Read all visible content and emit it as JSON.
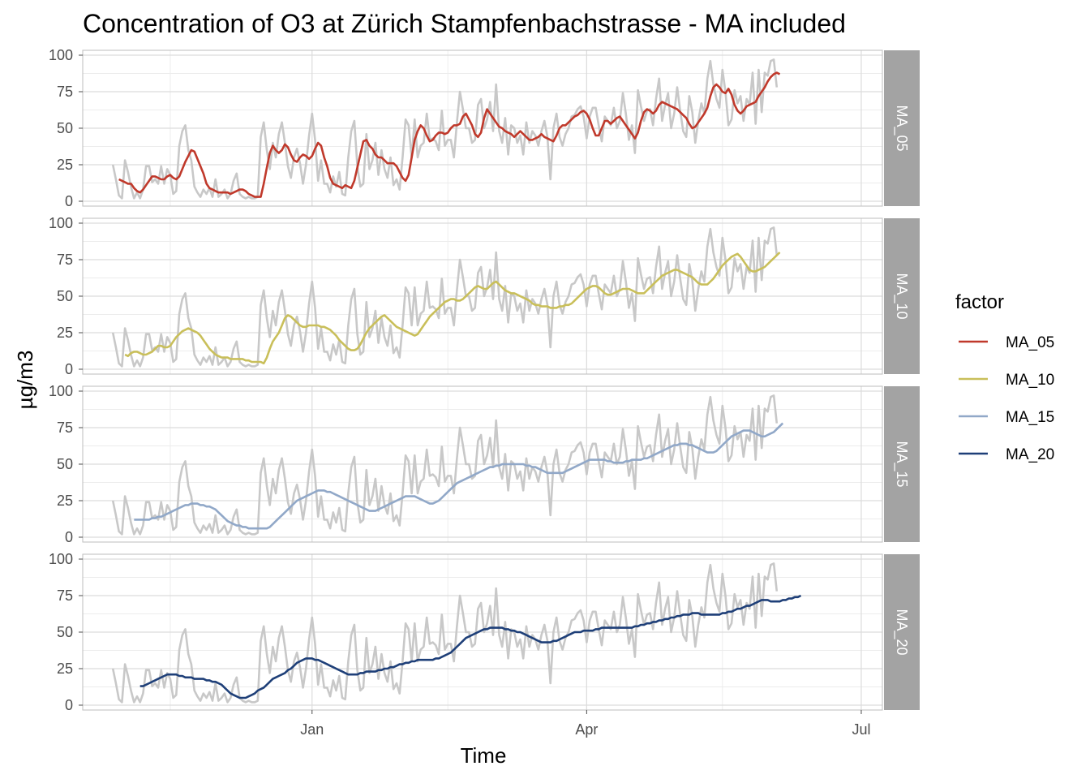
{
  "chart_data": {
    "type": "line",
    "title": "Concentration of O3 at Zürich Stampfenbachstrasse - MA included",
    "xlabel": "Time",
    "ylabel": "µg/m3",
    "x_ticks": [
      "Jan",
      "Apr",
      "Jul"
    ],
    "x_range": [
      "2019-10-17",
      "2020-07-08"
    ],
    "y_ticks": [
      0,
      25,
      50,
      75,
      100
    ],
    "ylim": [
      0,
      100
    ],
    "grid": true,
    "legend": {
      "title": "factor",
      "position": "right"
    },
    "raw_series_color": "#c8c8c8",
    "start_date": "2019-10-27",
    "raw_values": [
      25,
      15,
      4,
      2,
      28,
      20,
      10,
      2,
      6,
      2,
      8,
      24,
      24,
      13,
      15,
      12,
      24,
      12,
      22,
      18,
      5,
      7,
      38,
      48,
      52,
      35,
      28,
      10,
      6,
      3,
      8,
      5,
      9,
      3,
      15,
      3,
      5,
      8,
      2,
      5,
      14,
      19,
      5,
      3,
      2,
      3,
      2,
      2,
      3,
      44,
      54,
      35,
      22,
      40,
      30,
      46,
      54,
      40,
      24,
      16,
      30,
      36,
      26,
      12,
      25,
      45,
      60,
      42,
      14,
      28,
      12,
      12,
      6,
      17,
      10,
      20,
      5,
      4,
      30,
      48,
      55,
      24,
      10,
      12,
      46,
      22,
      28,
      40,
      18,
      35,
      22,
      16,
      30,
      11,
      15,
      8,
      30,
      56,
      52,
      30,
      56,
      30,
      38,
      40,
      60,
      42,
      43,
      41,
      35,
      62,
      38,
      42,
      42,
      30,
      54,
      75,
      63,
      50,
      50,
      40,
      42,
      66,
      70,
      50,
      56,
      68,
      48,
      80,
      48,
      40,
      57,
      32,
      52,
      50,
      40,
      45,
      32,
      54,
      40,
      48,
      45,
      38,
      48,
      55,
      44,
      15,
      50,
      60,
      44,
      38,
      46,
      50,
      58,
      59,
      63,
      65,
      58,
      43,
      58,
      64,
      64,
      52,
      41,
      58,
      55,
      52,
      64,
      50,
      55,
      74,
      60,
      42,
      52,
      33,
      76,
      65,
      55,
      62,
      63,
      52,
      70,
      84,
      55,
      66,
      74,
      50,
      60,
      78,
      62,
      48,
      44,
      72,
      61,
      40,
      55,
      67,
      60,
      84,
      96,
      80,
      70,
      64,
      90,
      75,
      52,
      56,
      76,
      67,
      72,
      55,
      70,
      66,
      88,
      53,
      90,
      61,
      88,
      86,
      96,
      97,
      78
    ],
    "series": [
      {
        "name": "MA_05",
        "color": "#c0392b",
        "offset": 2,
        "values": [
          15,
          14,
          13,
          12,
          12,
          9,
          7,
          6,
          8,
          11,
          14,
          17,
          17,
          16,
          15,
          15,
          17,
          18,
          16,
          15,
          17,
          22,
          27,
          31,
          35,
          34,
          29,
          24,
          19,
          12,
          9,
          8,
          7,
          6,
          6,
          6,
          6,
          5,
          6,
          7,
          8,
          8,
          7,
          5,
          4,
          3,
          3,
          3,
          12,
          23,
          33,
          38,
          35,
          33,
          35,
          39,
          37,
          32,
          28,
          27,
          30,
          32,
          31,
          29,
          31,
          36,
          40,
          38,
          30,
          24,
          16,
          12,
          11,
          10,
          9,
          11,
          10,
          9,
          14,
          23,
          32,
          41,
          42,
          38,
          36,
          32,
          30,
          30,
          28,
          26,
          26,
          26,
          24,
          20,
          16,
          14,
          18,
          30,
          42,
          48,
          52,
          50,
          45,
          41,
          42,
          45,
          47,
          47,
          46,
          47,
          50,
          52,
          52,
          53,
          58,
          60,
          56,
          52,
          46,
          44,
          47,
          57,
          63,
          60,
          57,
          54,
          51,
          50,
          48,
          47,
          46,
          44,
          46,
          48,
          46,
          44,
          42,
          42,
          43,
          44,
          46,
          44,
          43,
          42,
          41,
          45,
          50,
          52,
          52,
          54,
          56,
          58,
          59,
          61,
          62,
          60,
          56,
          50,
          45,
          45,
          50,
          55,
          55,
          53,
          55,
          57,
          58,
          55,
          52,
          49,
          46,
          43,
          47,
          55,
          61,
          63,
          62,
          60,
          62,
          66,
          68,
          67,
          66,
          65,
          64,
          63,
          61,
          59,
          57,
          53,
          50,
          51,
          54,
          57,
          60,
          64,
          72,
          78,
          80,
          78,
          75,
          74,
          77,
          73,
          66,
          62,
          60,
          62,
          65,
          66,
          67,
          68,
          72,
          75,
          78,
          82,
          85,
          87,
          88,
          87
        ]
      },
      {
        "name": "MA_10",
        "color": "#c9bf5a",
        "offset": 4,
        "values": [
          10,
          9,
          11,
          12,
          12,
          11,
          10,
          10,
          11,
          12,
          14,
          16,
          16,
          15,
          15,
          16,
          19,
          22,
          24,
          26,
          27,
          28,
          27,
          26,
          25,
          23,
          20,
          17,
          14,
          12,
          10,
          9,
          8,
          8,
          8,
          7,
          7,
          7,
          7,
          7,
          6,
          6,
          5,
          5,
          5,
          5,
          4,
          8,
          14,
          19,
          22,
          25,
          30,
          35,
          37,
          36,
          34,
          32,
          30,
          29,
          29,
          30,
          30,
          30,
          30,
          29,
          29,
          28,
          27,
          25,
          23,
          20,
          18,
          16,
          14,
          13,
          13,
          14,
          17,
          21,
          25,
          28,
          30,
          32,
          34,
          36,
          37,
          35,
          33,
          31,
          29,
          28,
          27,
          26,
          25,
          24,
          23,
          24,
          27,
          30,
          33,
          36,
          38,
          40,
          42,
          44,
          46,
          47,
          48,
          48,
          47,
          47,
          48,
          50,
          52,
          54,
          56,
          57,
          56,
          55,
          55,
          57,
          59,
          60,
          58,
          56,
          54,
          53,
          52,
          52,
          51,
          50,
          49,
          48,
          47,
          45,
          44,
          44,
          43,
          43,
          43,
          42,
          42,
          42,
          43,
          43,
          44,
          44,
          45,
          47,
          49,
          51,
          53,
          55,
          56,
          57,
          57,
          56,
          54,
          52,
          51,
          51,
          52,
          53,
          54,
          55,
          55,
          55,
          54,
          53,
          52,
          52,
          52,
          54,
          56,
          58,
          60,
          62,
          64,
          65,
          66,
          67,
          68,
          68,
          67,
          66,
          65,
          64,
          63,
          61,
          59,
          58,
          58,
          58,
          60,
          62,
          65,
          68,
          71,
          73,
          75,
          77,
          78,
          79,
          77,
          74,
          71,
          68,
          67,
          67,
          68,
          69,
          70,
          72,
          74,
          76,
          78,
          80
        ]
      },
      {
        "name": "MA_15",
        "color": "#91a8c8",
        "offset": 7,
        "values": [
          12,
          12,
          12,
          12,
          12,
          12,
          13,
          13,
          14,
          14,
          15,
          16,
          17,
          18,
          19,
          20,
          21,
          22,
          22,
          23,
          23,
          23,
          22,
          22,
          21,
          21,
          20,
          19,
          17,
          15,
          13,
          11,
          10,
          9,
          8,
          8,
          7,
          7,
          6,
          6,
          6,
          6,
          6,
          6,
          6,
          7,
          9,
          11,
          13,
          15,
          17,
          19,
          21,
          23,
          25,
          26,
          27,
          28,
          29,
          30,
          31,
          32,
          32,
          32,
          31,
          31,
          30,
          29,
          28,
          27,
          26,
          25,
          24,
          23,
          22,
          21,
          20,
          19,
          18,
          18,
          18,
          19,
          20,
          21,
          22,
          23,
          24,
          25,
          26,
          27,
          28,
          28,
          28,
          28,
          27,
          26,
          25,
          24,
          23,
          23,
          24,
          25,
          27,
          29,
          31,
          33,
          35,
          37,
          38,
          39,
          40,
          41,
          42,
          43,
          44,
          45,
          46,
          47,
          48,
          48,
          49,
          49,
          50,
          50,
          50,
          50,
          50,
          50,
          50,
          50,
          49,
          49,
          48,
          48,
          47,
          46,
          45,
          44,
          44,
          44,
          44,
          44,
          44,
          45,
          46,
          47,
          48,
          49,
          50,
          51,
          52,
          53,
          53,
          53,
          53,
          53,
          53,
          52,
          52,
          51,
          51,
          51,
          51,
          52,
          52,
          53,
          53,
          53,
          53,
          54,
          54,
          55,
          56,
          57,
          58,
          59,
          60,
          61,
          62,
          63,
          63,
          64,
          64,
          64,
          63,
          63,
          62,
          61,
          60,
          59,
          58,
          58,
          58,
          59,
          61,
          63,
          65,
          67,
          69,
          70,
          71,
          72,
          73,
          73,
          73,
          72,
          71,
          70,
          69,
          69,
          70,
          71,
          72,
          74,
          76,
          78
        ]
      },
      {
        "name": "MA_20",
        "color": "#1e3f78",
        "offset": 9,
        "values": [
          13,
          13,
          14,
          15,
          16,
          17,
          18,
          19,
          20,
          21,
          21,
          21,
          21,
          20,
          20,
          19,
          19,
          19,
          18,
          18,
          18,
          18,
          17,
          17,
          16,
          16,
          15,
          14,
          12,
          10,
          8,
          7,
          6,
          5,
          5,
          5,
          6,
          7,
          8,
          10,
          11,
          12,
          14,
          16,
          18,
          19,
          20,
          21,
          22,
          24,
          25,
          27,
          29,
          30,
          31,
          32,
          32,
          32,
          31,
          31,
          30,
          29,
          28,
          27,
          26,
          25,
          24,
          23,
          22,
          21,
          21,
          21,
          21,
          22,
          22,
          23,
          23,
          23,
          23,
          24,
          24,
          25,
          25,
          26,
          26,
          27,
          28,
          28,
          29,
          29,
          30,
          30,
          31,
          31,
          31,
          31,
          31,
          31,
          32,
          32,
          33,
          34,
          35,
          36,
          38,
          40,
          42,
          44,
          46,
          47,
          48,
          49,
          50,
          51,
          52,
          52,
          53,
          53,
          53,
          53,
          53,
          52,
          52,
          51,
          51,
          50,
          50,
          49,
          48,
          47,
          46,
          45,
          44,
          43,
          43,
          43,
          43,
          44,
          44,
          45,
          46,
          47,
          48,
          49,
          50,
          50,
          50,
          51,
          51,
          51,
          51,
          52,
          52,
          53,
          53,
          53,
          53,
          53,
          53,
          53,
          53,
          53,
          53,
          53,
          54,
          54,
          55,
          55,
          56,
          56,
          57,
          57,
          58,
          58,
          59,
          59,
          60,
          60,
          61,
          61,
          62,
          62,
          62,
          63,
          63,
          63,
          62,
          62,
          62,
          62,
          62,
          62,
          62,
          63,
          63,
          64,
          64,
          65,
          66,
          66,
          67,
          68,
          68,
          69,
          70,
          71,
          72,
          72,
          72,
          71,
          71,
          71,
          71,
          72,
          72,
          73,
          73,
          74,
          74,
          75
        ]
      }
    ]
  }
}
